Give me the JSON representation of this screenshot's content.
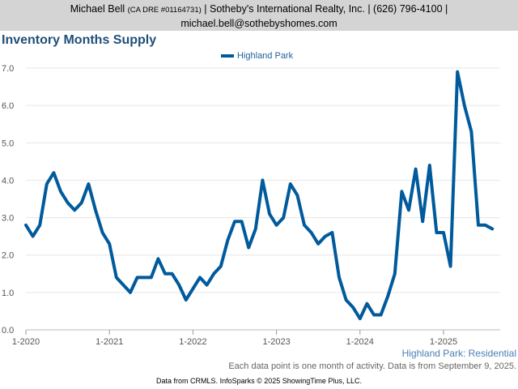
{
  "header": {
    "name": "Michael Bell",
    "license": "(CA DRE #01164731)",
    "company": "| Sotheby's International Realty, Inc. | (626) 796-4100 |",
    "email": "michael.bell@sothebyshomes.com"
  },
  "footer": {
    "region_label": "Highland Park: Residential",
    "note": "Each data point is one month of activity. Data is from September 9, 2025.",
    "credit": "Data from CRMLS. InfoSparks © 2025 ShowingTime Plus, LLC."
  },
  "colors": {
    "line": "#005a9c",
    "title": "#1f4e79",
    "grid": "#e6e6e6",
    "header_bg": "#d4d4d4"
  },
  "chart_data": {
    "type": "line",
    "title": "Inventory Months Supply",
    "xlabel": "",
    "ylabel": "",
    "ylim": [
      0,
      7
    ],
    "yticks": [
      "0.0",
      "1.0",
      "2.0",
      "3.0",
      "4.0",
      "5.0",
      "6.0",
      "7.0"
    ],
    "xtick_labels": [
      "1-2020",
      "1-2021",
      "1-2022",
      "1-2023",
      "1-2024",
      "1-2025"
    ],
    "grid": true,
    "legend_position": "top-center",
    "series": [
      {
        "name": "Highland Park",
        "x_start": "2020-01",
        "values": [
          2.8,
          2.5,
          2.8,
          3.9,
          4.2,
          3.7,
          3.4,
          3.2,
          3.4,
          3.9,
          3.2,
          2.6,
          2.3,
          1.4,
          1.2,
          1.0,
          1.4,
          1.4,
          1.4,
          1.9,
          1.5,
          1.5,
          1.2,
          0.8,
          1.1,
          1.4,
          1.2,
          1.5,
          1.7,
          2.4,
          2.9,
          2.9,
          2.2,
          2.7,
          4.0,
          3.1,
          2.8,
          3.0,
          3.9,
          3.6,
          2.8,
          2.6,
          2.3,
          2.5,
          2.6,
          1.4,
          0.8,
          0.6,
          0.3,
          0.7,
          0.4,
          0.4,
          0.9,
          1.5,
          3.7,
          3.2,
          4.3,
          2.9,
          4.4,
          2.6,
          2.6,
          1.7,
          6.9,
          6.0,
          5.3,
          2.8,
          2.8,
          2.7
        ]
      }
    ]
  }
}
